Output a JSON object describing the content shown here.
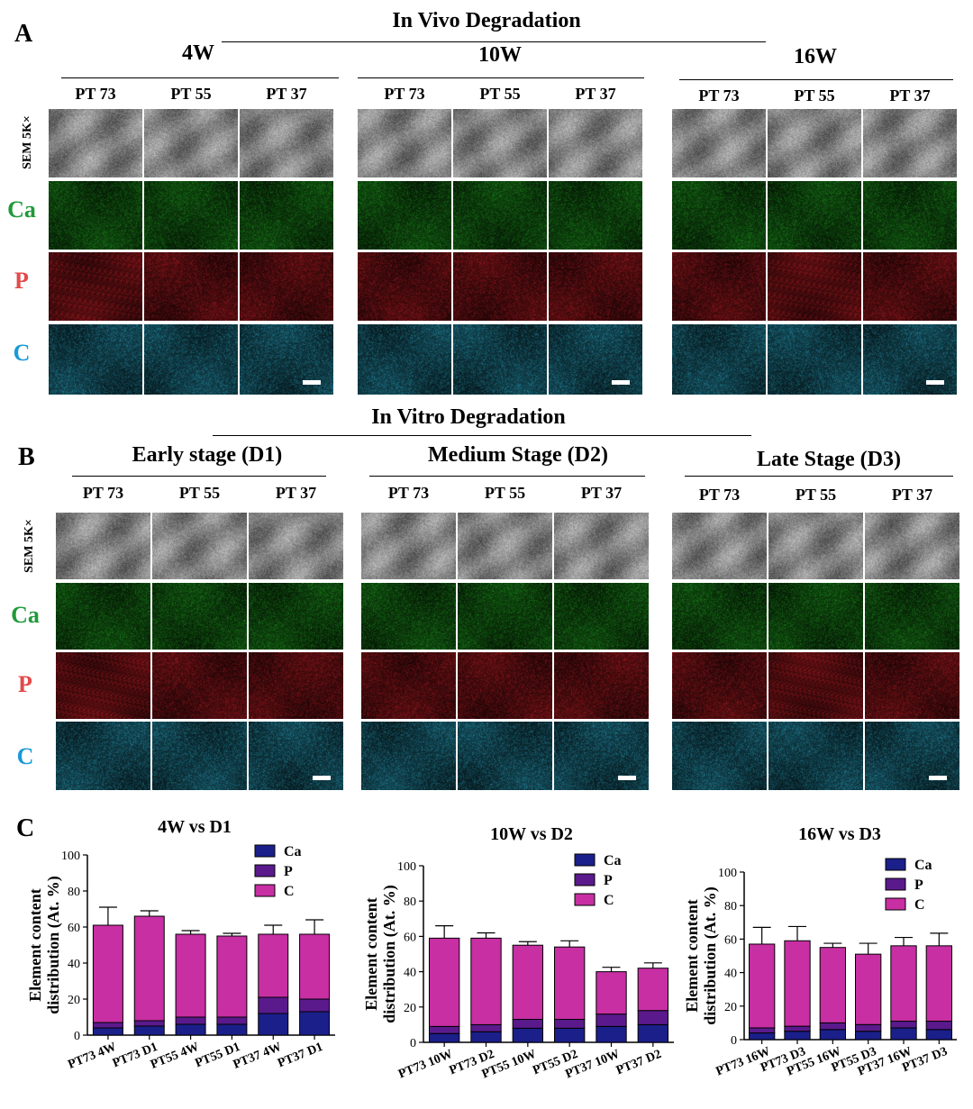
{
  "panel_a": {
    "letter": "A",
    "title": "In Vivo Degradation",
    "groups": [
      "4W",
      "10W",
      "16W"
    ],
    "columns": [
      "PT 73",
      "PT 55",
      "PT 37"
    ],
    "rows": {
      "sem": "SEM 5K×",
      "ca": "Ca",
      "p": "P",
      "c": "C"
    }
  },
  "panel_b": {
    "letter": "B",
    "title": "In Vitro Degradation",
    "groups": [
      "Early stage (D1)",
      "Medium Stage (D2)",
      "Late Stage (D3)"
    ],
    "columns": [
      "PT 73",
      "PT 55",
      "PT 37"
    ],
    "rows": {
      "sem": "SEM 5K×",
      "ca": "Ca",
      "p": "P",
      "c": "C"
    }
  },
  "panel_c": {
    "letter": "C"
  },
  "colors": {
    "ca": "#1b1f8a",
    "p": "#5a1a8c",
    "c": "#c72fa3",
    "ca_label": "#1f9a3a",
    "p_label": "#e24a4a",
    "c_label": "#1a9ad8"
  },
  "chart_data": [
    {
      "type": "bar",
      "stacked": true,
      "title": "4W vs D1",
      "ylabel": "Element content\ndistribution  (At. %)",
      "ylim": [
        0,
        100
      ],
      "yticks": [
        0,
        20,
        40,
        60,
        80,
        100
      ],
      "categories": [
        "PT73  4W",
        "PT73  D1",
        "PT55  4W",
        "PT55  D1",
        "PT37  4W",
        "PT37  D1"
      ],
      "series": [
        {
          "name": "Ca",
          "values": [
            4,
            5,
            6,
            6,
            12,
            13
          ]
        },
        {
          "name": "P",
          "values": [
            3,
            3,
            4,
            4,
            9,
            7
          ]
        },
        {
          "name": "C",
          "values": [
            54,
            58,
            46,
            45,
            35,
            36
          ]
        }
      ],
      "error": [
        10,
        3,
        2,
        1.5,
        5,
        8
      ],
      "legend": "top-right"
    },
    {
      "type": "bar",
      "stacked": true,
      "title": "10W vs D2",
      "ylabel": "Element content\ndistribution  (At. %)",
      "ylim": [
        0,
        100
      ],
      "yticks": [
        0,
        20,
        40,
        60,
        80,
        100
      ],
      "categories": [
        "PT73 10W",
        "PT73 D2",
        "PT55 10W",
        "PT55 D2",
        "PT37 10W",
        "PT37 D2"
      ],
      "series": [
        {
          "name": "Ca",
          "values": [
            5,
            6,
            8,
            8,
            9,
            10
          ]
        },
        {
          "name": "P",
          "values": [
            4,
            4,
            5,
            5,
            7,
            8
          ]
        },
        {
          "name": "C",
          "values": [
            50,
            49,
            42,
            41,
            24,
            24
          ]
        }
      ],
      "error": [
        7,
        3,
        2,
        3.5,
        2.5,
        3
      ],
      "legend": "top-right"
    },
    {
      "type": "bar",
      "stacked": true,
      "title": "16W vs D3",
      "ylabel": "Element content\ndistribution  (At. %)",
      "ylim": [
        0,
        100
      ],
      "yticks": [
        0,
        20,
        40,
        60,
        80,
        100
      ],
      "categories": [
        "PT73 16W",
        "PT73 D3",
        "PT55 16W",
        "PT55 D3",
        "PT37 16W",
        "PT37 D3"
      ],
      "series": [
        {
          "name": "Ca",
          "values": [
            4,
            5,
            6,
            5,
            7,
            6
          ]
        },
        {
          "name": "P",
          "values": [
            3,
            3,
            4,
            4,
            4,
            5
          ]
        },
        {
          "name": "C",
          "values": [
            50,
            51,
            45,
            42,
            45,
            45
          ]
        }
      ],
      "error": [
        10,
        8.5,
        2.5,
        6.5,
        5,
        7.5
      ],
      "legend": "top-right"
    }
  ]
}
